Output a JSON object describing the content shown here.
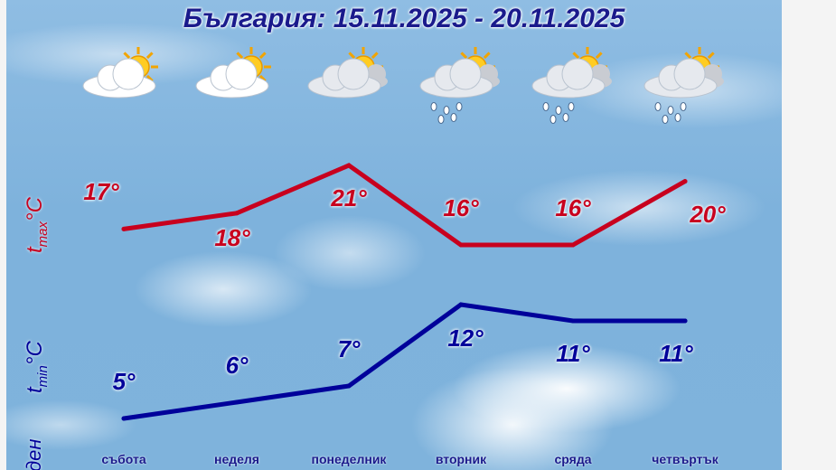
{
  "title": "България: 15.11.2025 - 20.11.2025",
  "tmax_label": {
    "t": "t",
    "sub": "max",
    "unit": "°C"
  },
  "tmin_label": {
    "t": "t",
    "sub": "min",
    "unit": "°C"
  },
  "partial_label": "ден",
  "colors": {
    "max": "#c8001e",
    "min": "#00009a",
    "title": "#1a1a8c"
  },
  "chart_data": {
    "type": "line",
    "title": "България: 15.11.2025 - 20.11.2025",
    "categories": [
      "събота",
      "неделя",
      "понеделник",
      "вторник",
      "сряда",
      "четвъртък"
    ],
    "icons": [
      "partly-cloudy-icon",
      "partly-cloudy-icon",
      "cloudy-sun-icon",
      "sun-cloud-rain-icon",
      "sun-cloud-rain-icon",
      "sun-cloud-rain-icon"
    ],
    "series": [
      {
        "name": "tmax °C",
        "values": [
          17,
          18,
          21,
          16,
          16,
          20
        ],
        "labels": [
          "17°",
          "18°",
          "21°",
          "16°",
          "16°",
          "20°"
        ]
      },
      {
        "name": "tmin °C",
        "values": [
          5,
          6,
          7,
          12,
          11,
          11
        ],
        "labels": [
          "5°",
          "6°",
          "7°",
          "12°",
          "11°",
          "11°"
        ]
      }
    ]
  }
}
